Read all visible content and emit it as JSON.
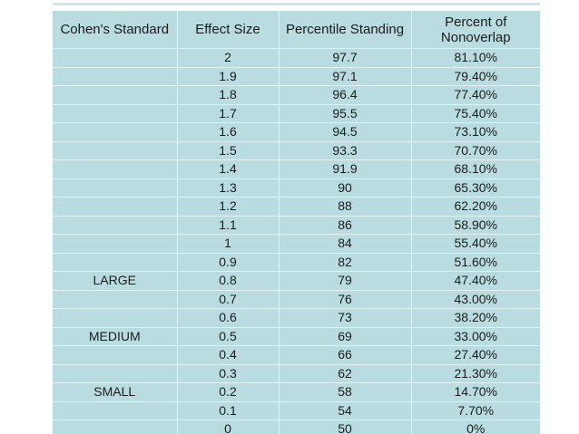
{
  "slide": {
    "colors": {
      "page_background": "#ffffff",
      "top_strip": "#cde8ea",
      "table_background": "#b8dcdf",
      "grid_line": "#e4f2f3",
      "text": "#1c1c1c"
    }
  },
  "chart_data": {
    "type": "table",
    "title": "Cohen's Standard effect size table",
    "columns": [
      "Cohen's Standard",
      "Effect Size",
      "Percentile Standing",
      "Percent of Nonoverlap"
    ],
    "rows": [
      [
        "",
        "2",
        "97.7",
        "81.10%"
      ],
      [
        "",
        "1.9",
        "97.1",
        "79.40%"
      ],
      [
        "",
        "1.8",
        "96.4",
        "77.40%"
      ],
      [
        "",
        "1.7",
        "95.5",
        "75.40%"
      ],
      [
        "",
        "1.6",
        "94.5",
        "73.10%"
      ],
      [
        "",
        "1.5",
        "93.3",
        "70.70%"
      ],
      [
        "",
        "1.4",
        "91.9",
        "68.10%"
      ],
      [
        "",
        "1.3",
        "90",
        "65.30%"
      ],
      [
        "",
        "1.2",
        "88",
        "62.20%"
      ],
      [
        "",
        "1.1",
        "86",
        "58.90%"
      ],
      [
        "",
        "1",
        "84",
        "55.40%"
      ],
      [
        "",
        "0.9",
        "82",
        "51.60%"
      ],
      [
        "LARGE",
        "0.8",
        "79",
        "47.40%"
      ],
      [
        "",
        "0.7",
        "76",
        "43.00%"
      ],
      [
        "",
        "0.6",
        "73",
        "38.20%"
      ],
      [
        "MEDIUM",
        "0.5",
        "69",
        "33.00%"
      ],
      [
        "",
        "0.4",
        "66",
        "27.40%"
      ],
      [
        "",
        "0.3",
        "62",
        "21.30%"
      ],
      [
        "SMALL",
        "0.2",
        "58",
        "14.70%"
      ],
      [
        "",
        "0.1",
        "54",
        "7.70%"
      ],
      [
        "",
        "0",
        "50",
        "0%"
      ]
    ]
  }
}
